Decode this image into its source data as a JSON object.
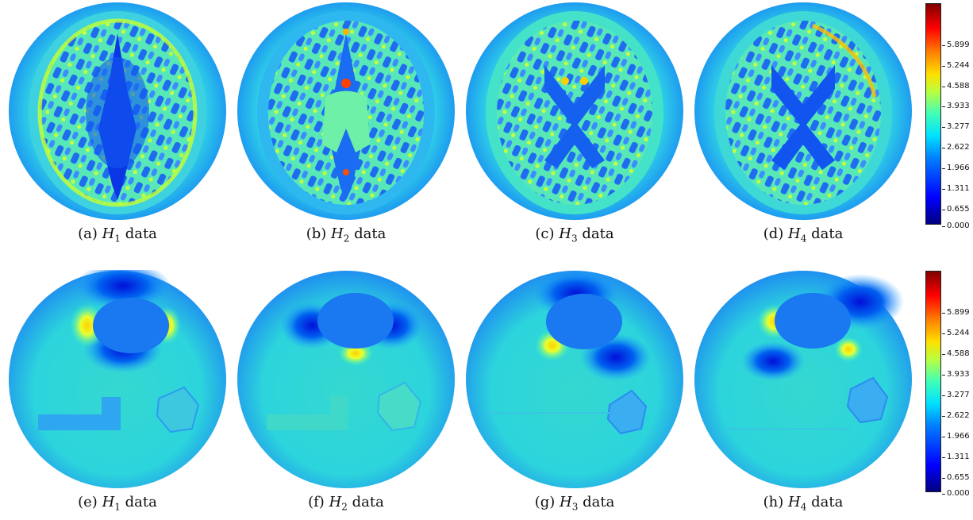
{
  "colormap": "jet",
  "colorbar_ticks": [
    "5.899",
    "5.244",
    "4.588",
    "3.933",
    "3.277",
    "2.622",
    "1.966",
    "1.311",
    "0.655",
    "0.000"
  ],
  "panels_top": [
    {
      "label": "(a)",
      "sym": "H",
      "sub": "1",
      "suffix": "data",
      "image": "brain-phantom-h1"
    },
    {
      "label": "(b)",
      "sym": "H",
      "sub": "2",
      "suffix": "data",
      "image": "brain-phantom-h2"
    },
    {
      "label": "(c)",
      "sym": "H",
      "sub": "3",
      "suffix": "data",
      "image": "brain-phantom-h3"
    },
    {
      "label": "(d)",
      "sym": "H",
      "sub": "4",
      "suffix": "data",
      "image": "brain-phantom-h4"
    }
  ],
  "panels_bottom": [
    {
      "label": "(e)",
      "sym": "H",
      "sub": "1",
      "suffix": "data",
      "image": "inclusion-phantom-h1"
    },
    {
      "label": "(f)",
      "sym": "H",
      "sub": "2",
      "suffix": "data",
      "image": "inclusion-phantom-h2"
    },
    {
      "label": "(g)",
      "sym": "H",
      "sub": "3",
      "suffix": "data",
      "image": "inclusion-phantom-h3"
    },
    {
      "label": "(h)",
      "sym": "H",
      "sub": "4",
      "suffix": "data",
      "image": "inclusion-phantom-h4"
    }
  ]
}
